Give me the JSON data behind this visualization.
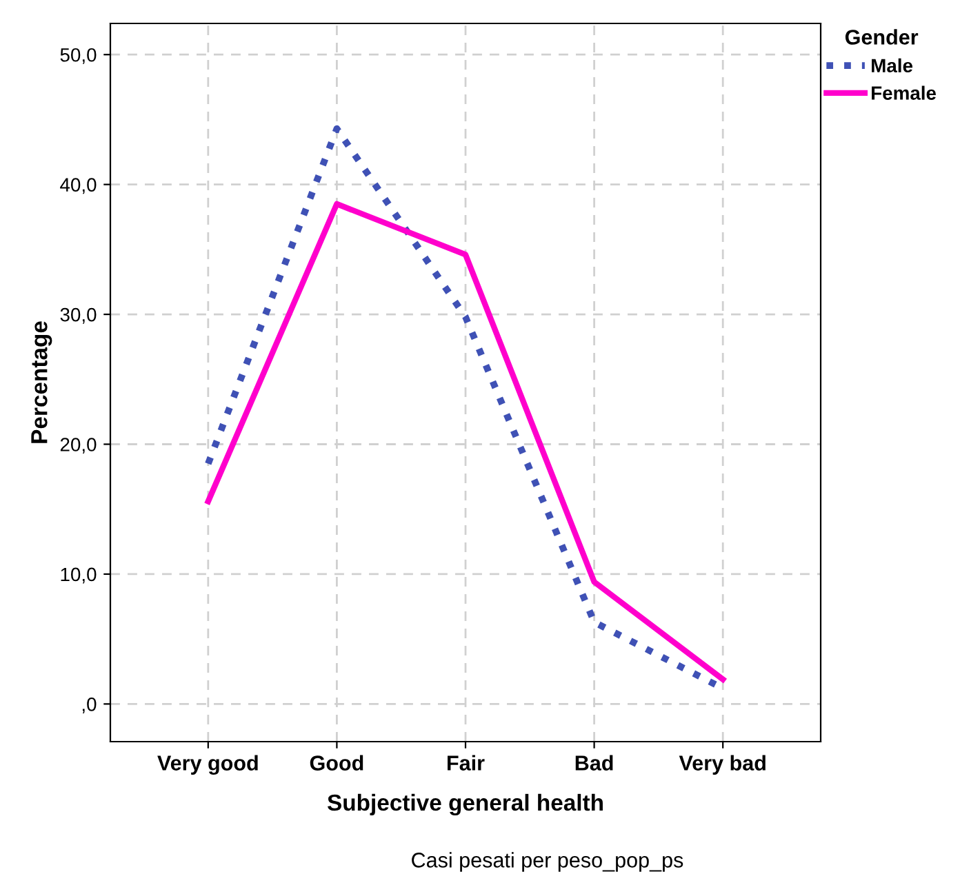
{
  "chart_data": {
    "type": "line",
    "xlabel": "Subjective general health",
    "ylabel": "Percentage",
    "legend_title": "Gender",
    "categories": [
      "Very good",
      "Good",
      "Fair",
      "Bad",
      "Very bad"
    ],
    "series": [
      {
        "name": "Male",
        "color": "#3f51b5",
        "line_style": "dotted",
        "values": [
          18.5,
          44.3,
          29.8,
          6.3,
          1.2
        ]
      },
      {
        "name": "Female",
        "color": "#ff00cc",
        "line_style": "solid",
        "values": [
          15.6,
          38.5,
          34.6,
          9.4,
          1.9
        ]
      }
    ],
    "ylim": [
      -2.9,
      52.4
    ],
    "yticks": [
      {
        "value": 0,
        "label": ",0"
      },
      {
        "value": 10,
        "label": "10,0"
      },
      {
        "value": 20,
        "label": "20,0"
      },
      {
        "value": 30,
        "label": "30,0"
      },
      {
        "value": 40,
        "label": "40,0"
      },
      {
        "value": 50,
        "label": "50,0"
      }
    ],
    "grid": true,
    "legend": "right",
    "marker": "none",
    "annotations": [
      "Casi pesati per peso_pop_ps"
    ]
  }
}
